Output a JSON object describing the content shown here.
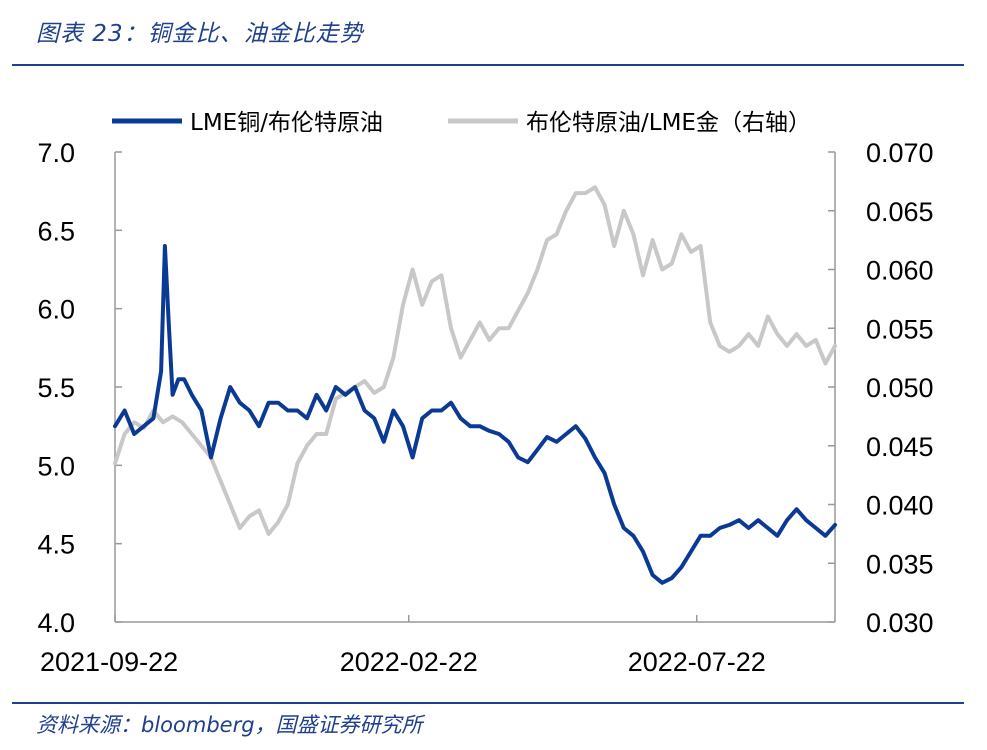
{
  "header": {
    "title": "图表 23：铜金比、油金比走势"
  },
  "footer": {
    "source": "资料来源：bloomberg，国盛证券研究所"
  },
  "colors": {
    "series1": "#0b3a95",
    "series2": "#c8c8c8",
    "accent": "#1f3f8f"
  },
  "chart_data": {
    "type": "line",
    "title": "铜金比、油金比走势",
    "x_axis": {
      "start": "2021-09-22",
      "end": "2022-09-20",
      "tick_labels": [
        "2021-09-22",
        "2022-02-22",
        "2022-07-22"
      ],
      "tick_positions": [
        0,
        153,
        303
      ]
    },
    "y_left": {
      "range": [
        4.0,
        7.0
      ],
      "ticks": [
        "4.0",
        "4.5",
        "5.0",
        "5.5",
        "6.0",
        "6.5",
        "7.0"
      ]
    },
    "y_right": {
      "range": [
        0.03,
        0.07
      ],
      "ticks": [
        "0.030",
        "0.035",
        "0.040",
        "0.045",
        "0.050",
        "0.055",
        "0.060",
        "0.065",
        "0.070"
      ]
    },
    "series": [
      {
        "name": "LME铜/布伦特原油",
        "axis": "left",
        "x": [
          0,
          5,
          10,
          15,
          20,
          24,
          26,
          28,
          30,
          33,
          36,
          40,
          45,
          50,
          55,
          60,
          65,
          70,
          75,
          80,
          85,
          90,
          95,
          100,
          105,
          110,
          115,
          120,
          125,
          130,
          135,
          140,
          145,
          150,
          155,
          160,
          165,
          170,
          175,
          180,
          185,
          190,
          195,
          200,
          205,
          210,
          215,
          220,
          225,
          230,
          235,
          240,
          245,
          250,
          255,
          260,
          265,
          270,
          275,
          280,
          285,
          290,
          295,
          300,
          305,
          310,
          315,
          320,
          325,
          330,
          335,
          340,
          345,
          350,
          355,
          360,
          365,
          370,
          375
        ],
        "values": [
          5.25,
          5.35,
          5.2,
          5.25,
          5.3,
          5.6,
          6.4,
          5.9,
          5.45,
          5.55,
          5.55,
          5.45,
          5.35,
          5.05,
          5.3,
          5.5,
          5.4,
          5.35,
          5.25,
          5.4,
          5.4,
          5.35,
          5.35,
          5.3,
          5.45,
          5.35,
          5.5,
          5.45,
          5.5,
          5.35,
          5.3,
          5.15,
          5.35,
          5.25,
          5.05,
          5.3,
          5.35,
          5.35,
          5.4,
          5.3,
          5.25,
          5.25,
          5.22,
          5.2,
          5.15,
          5.05,
          5.02,
          5.1,
          5.18,
          5.15,
          5.2,
          5.25,
          5.17,
          5.05,
          4.95,
          4.75,
          4.6,
          4.55,
          4.45,
          4.3,
          4.25,
          4.28,
          4.35,
          4.45,
          4.55,
          4.55,
          4.6,
          4.62,
          4.65,
          4.6,
          4.65,
          4.6,
          4.55,
          4.65,
          4.72,
          4.65,
          4.6,
          4.55,
          4.62
        ]
      },
      {
        "name": "布伦特原油/LME金（右轴）",
        "axis": "right",
        "x": [
          0,
          5,
          10,
          15,
          20,
          25,
          30,
          35,
          40,
          45,
          50,
          55,
          60,
          65,
          70,
          75,
          80,
          85,
          90,
          95,
          100,
          105,
          110,
          115,
          120,
          125,
          130,
          135,
          140,
          145,
          150,
          155,
          160,
          165,
          170,
          175,
          180,
          185,
          190,
          195,
          200,
          205,
          210,
          215,
          220,
          225,
          230,
          235,
          240,
          245,
          250,
          255,
          260,
          265,
          270,
          275,
          280,
          285,
          290,
          295,
          300,
          305,
          310,
          315,
          320,
          325,
          330,
          335,
          340,
          345,
          350,
          355,
          360,
          365,
          370,
          375
        ],
        "values": [
          0.0435,
          0.046,
          0.047,
          0.0465,
          0.048,
          0.047,
          0.0475,
          0.047,
          0.046,
          0.045,
          0.044,
          0.042,
          0.04,
          0.038,
          0.039,
          0.0395,
          0.0375,
          0.0385,
          0.04,
          0.0435,
          0.045,
          0.046,
          0.046,
          0.049,
          0.0495,
          0.05,
          0.0505,
          0.0495,
          0.05,
          0.0525,
          0.057,
          0.06,
          0.057,
          0.059,
          0.0595,
          0.055,
          0.0525,
          0.054,
          0.0555,
          0.054,
          0.055,
          0.055,
          0.0565,
          0.058,
          0.06,
          0.0625,
          0.063,
          0.065,
          0.0665,
          0.0665,
          0.067,
          0.0655,
          0.062,
          0.065,
          0.063,
          0.0595,
          0.0625,
          0.06,
          0.0605,
          0.063,
          0.0615,
          0.062,
          0.0555,
          0.0535,
          0.053,
          0.0535,
          0.0545,
          0.0535,
          0.056,
          0.0545,
          0.0535,
          0.0545,
          0.0535,
          0.054,
          0.052,
          0.0535
        ]
      }
    ],
    "legend": [
      "LME铜/布伦特原油",
      "布伦特原油/LME金（右轴）"
    ],
    "legend_position": "top"
  }
}
